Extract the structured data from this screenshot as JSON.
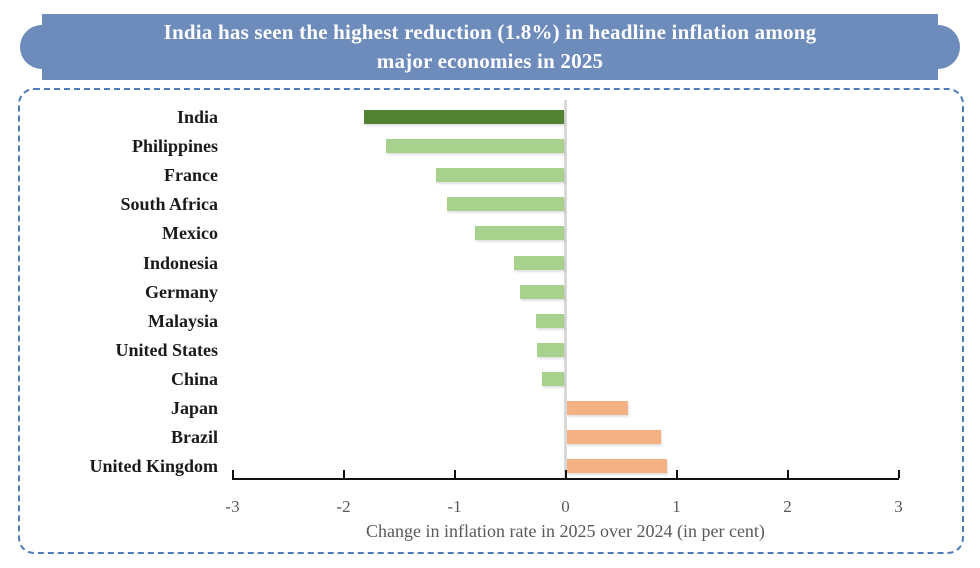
{
  "banner": {
    "line1": "India has seen the highest reduction (1.8%) in headline inflation among",
    "line2": "major economies in 2025",
    "bg_color": "#6d8cbb",
    "text_color": "#ffffff"
  },
  "panel": {
    "border_color": "#4f7dbc"
  },
  "chart_data": {
    "type": "bar",
    "orientation": "horizontal",
    "title": "India has seen the highest reduction (1.8%) in headline inflation among major economies in 2025",
    "categories": [
      "India",
      "Philippines",
      "France",
      "South Africa",
      "Mexico",
      "Indonesia",
      "Germany",
      "Malaysia",
      "United States",
      "China",
      "Japan",
      "Brazil",
      "United Kingdom"
    ],
    "values": [
      -1.8,
      -1.6,
      -1.15,
      -1.05,
      -0.8,
      -0.45,
      -0.4,
      -0.25,
      -0.24,
      -0.2,
      0.55,
      0.85,
      0.9
    ],
    "highlight_category": "India",
    "xlabel": "Change in inflation rate in 2025 over 2024 (in per cent)",
    "xlim": [
      -3,
      3
    ],
    "xticks": [
      -3,
      -2,
      -1,
      0,
      1,
      2,
      3
    ],
    "grid": "zero-line-only",
    "legend": "none",
    "colors": {
      "highlight_bar": "#548235",
      "negative_bar": "#a9d18e",
      "positive_bar": "#f4b183",
      "zero_line": "#d9d9d9",
      "axis": "#111111",
      "tick_text": "#595959",
      "category_text": "#1a1a1a"
    }
  }
}
